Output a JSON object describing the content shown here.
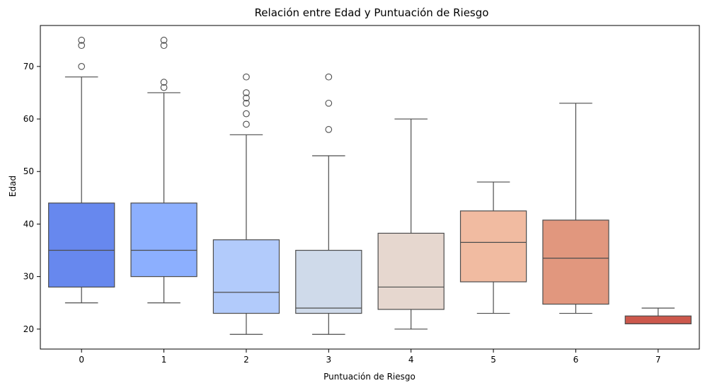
{
  "chart_data": {
    "type": "boxplot",
    "title": "Relación entre Edad y Puntuación de Riesgo",
    "xlabel": "Puntuación de Riesgo",
    "ylabel": "Edad",
    "ylim": [
      16.2,
      77.8
    ],
    "yticks": [
      20,
      30,
      40,
      50,
      60,
      70
    ],
    "grid": false,
    "legend": "none",
    "categories": [
      "0",
      "1",
      "2",
      "3",
      "4",
      "5",
      "6",
      "7"
    ],
    "boxes": [
      {
        "category": "0",
        "color": "#6788ee",
        "whisker_low": 25,
        "q1": 28,
        "median": 35,
        "q3": 44,
        "whisker_high": 68,
        "outliers": [
          70,
          74,
          75
        ]
      },
      {
        "category": "1",
        "color": "#8caffe",
        "whisker_low": 25,
        "q1": 30,
        "median": 35,
        "q3": 44,
        "whisker_high": 65,
        "outliers": [
          66,
          67,
          74,
          75
        ]
      },
      {
        "category": "2",
        "color": "#b2cbfb",
        "whisker_low": 19,
        "q1": 23,
        "median": 27,
        "q3": 37,
        "whisker_high": 57,
        "outliers": [
          59,
          61,
          63,
          64,
          65,
          68
        ]
      },
      {
        "category": "3",
        "color": "#cfdaea",
        "whisker_low": 19,
        "q1": 23,
        "median": 24,
        "q3": 35,
        "whisker_high": 53,
        "outliers": [
          58,
          63,
          68
        ]
      },
      {
        "category": "4",
        "color": "#e6d7cf",
        "whisker_low": 20,
        "q1": 23.75,
        "median": 28,
        "q3": 38.25,
        "whisker_high": 60,
        "outliers": []
      },
      {
        "category": "5",
        "color": "#f1bba1",
        "whisker_low": 23,
        "q1": 29,
        "median": 36.5,
        "q3": 42.5,
        "whisker_high": 48,
        "outliers": []
      },
      {
        "category": "6",
        "color": "#e1977e",
        "whisker_low": 23,
        "q1": 24.75,
        "median": 33.5,
        "q3": 40.75,
        "whisker_high": 63,
        "outliers": []
      },
      {
        "category": "7",
        "color": "#cc584c",
        "whisker_low": 21,
        "q1": 21,
        "median": 21,
        "q3": 22.5,
        "whisker_high": 24,
        "outliers": []
      }
    ]
  }
}
